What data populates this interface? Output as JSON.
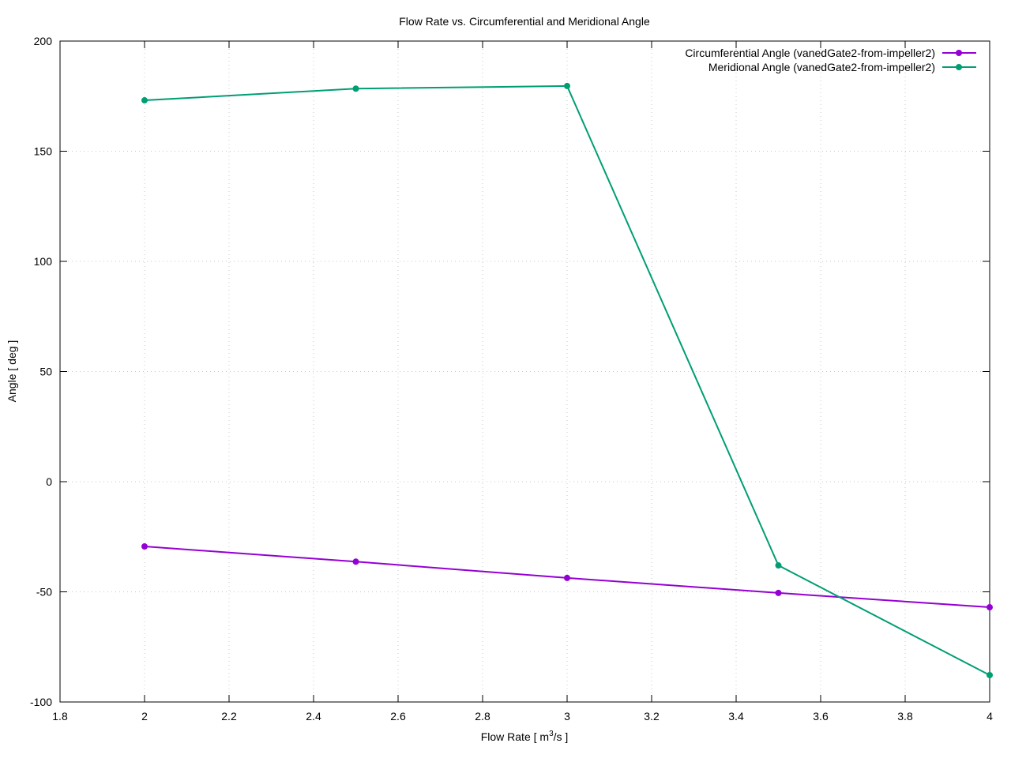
{
  "chart_data": {
    "type": "line",
    "title": "Flow Rate vs. Circumferential and Meridional Angle",
    "xlabel": "Flow Rate [ m3/s ]",
    "xlabel_parts": {
      "pre": "Flow Rate [ m",
      "sup": "3",
      "post": "/s ]"
    },
    "ylabel": "Angle [ deg ]",
    "xlim": [
      1.8,
      4.0
    ],
    "ylim": [
      -100,
      200
    ],
    "xticks": [
      "1.8",
      "2",
      "2.2",
      "2.4",
      "2.6",
      "2.8",
      "3",
      "3.2",
      "3.4",
      "3.6",
      "3.8",
      "4"
    ],
    "yticks": [
      "-100",
      "-50",
      "0",
      "50",
      "100",
      "150",
      "200"
    ],
    "grid": true,
    "legend_position": "top-right",
    "x": [
      2.0,
      2.5,
      3.0,
      3.5,
      4.0
    ],
    "series": [
      {
        "name": "Circumferential Angle (vanedGate2-from-impeller2)",
        "color": "#9400d3",
        "values": [
          -29.4,
          -36.3,
          -43.7,
          -50.5,
          -57.0
        ]
      },
      {
        "name": "Meridional Angle (vanedGate2-from-impeller2)",
        "color": "#009e73",
        "values": [
          173.1,
          178.4,
          179.6,
          -38.0,
          -87.8
        ]
      }
    ]
  }
}
